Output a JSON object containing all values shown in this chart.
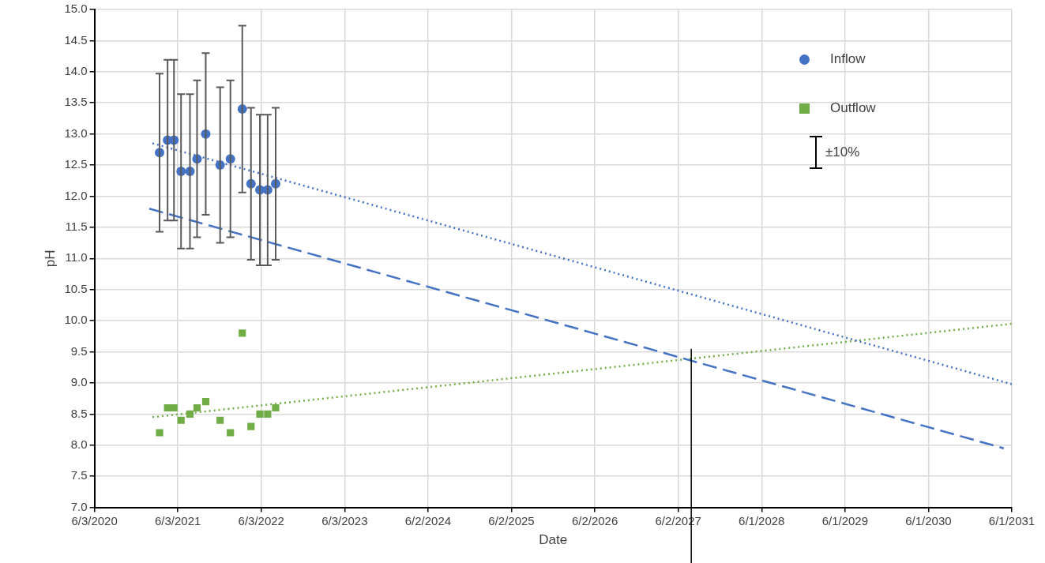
{
  "chart_data": {
    "type": "scatter",
    "xlabel": "Date",
    "ylabel": "pH",
    "annotations": [
      "±10%"
    ],
    "xlim": [
      "2020-06-03",
      "2031-06-01"
    ],
    "xticks": [
      {
        "value": "2020-06-03",
        "label": "6/3/2020"
      },
      {
        "value": "2021-06-03",
        "label": "6/3/2021"
      },
      {
        "value": "2022-06-03",
        "label": "6/3/2022"
      },
      {
        "value": "2023-06-03",
        "label": "6/3/2023"
      },
      {
        "value": "2024-06-02",
        "label": "6/2/2024"
      },
      {
        "value": "2025-06-02",
        "label": "6/2/2025"
      },
      {
        "value": "2026-06-02",
        "label": "6/2/2026"
      },
      {
        "value": "2027-06-02",
        "label": "6/2/2027"
      },
      {
        "value": "2028-06-01",
        "label": "6/1/2028"
      },
      {
        "value": "2029-06-01",
        "label": "6/1/2029"
      },
      {
        "value": "2030-06-01",
        "label": "6/1/2030"
      },
      {
        "value": "2031-06-01",
        "label": "6/1/2031"
      }
    ],
    "ylim": [
      7,
      15
    ],
    "yticks": [
      {
        "value": 7,
        "label": "7.0"
      },
      7.5,
      {
        "value": 8,
        "label": "8.0"
      },
      8.5,
      {
        "value": 9,
        "label": "9.0"
      },
      9.5,
      {
        "value": 10,
        "label": "10.0"
      },
      10.5,
      {
        "value": 11,
        "label": "11.0"
      },
      11.5,
      {
        "value": 12,
        "label": "12.0"
      },
      12.5,
      {
        "value": 13,
        "label": "13.0"
      },
      13.5,
      {
        "value": 14,
        "label": "14.0"
      },
      14.5,
      {
        "value": 15,
        "label": "15.0"
      }
    ],
    "grid": true,
    "legend": "top right",
    "x": [
      "2021-03-15",
      "2021-04-19",
      "2021-05-17",
      "2021-06-17",
      "2021-07-26",
      "2021-08-26",
      "2021-10-03",
      "2021-12-05",
      "2022-01-19",
      "2022-03-12",
      "2022-04-19",
      "2022-05-28",
      "2022-07-01",
      "2022-08-05"
    ],
    "series": [
      {
        "name": "Inflow",
        "marker": "circle",
        "color": "#4472c4",
        "values": [
          12.7,
          12.9,
          12.9,
          12.4,
          12.4,
          12.6,
          13.0,
          12.5,
          12.6,
          13.4,
          12.2,
          12.1,
          12.1,
          12.2
        ],
        "errors": [
          1.27,
          1.29,
          1.29,
          1.24,
          1.24,
          1.26,
          1.3,
          1.25,
          1.26,
          1.34,
          1.22,
          1.21,
          1.21,
          1.22
        ]
      },
      {
        "name": "Outflow",
        "marker": "square",
        "color": "#70ad47",
        "values": [
          8.2,
          8.6,
          8.6,
          8.4,
          8.5,
          8.6,
          8.7,
          8.4,
          8.2,
          9.8,
          8.3,
          8.5,
          8.5,
          8.6
        ]
      },
      {
        "type": "line",
        "line_style": "dotted",
        "color": "#4472c4",
        "x": [
          "2021-02-12",
          "2031-06-01"
        ],
        "values": [
          12.85,
          8.98
        ]
      },
      {
        "type": "line",
        "line_style": "dashed",
        "color": "#4472c4",
        "x": [
          "2021-01-29",
          "2031-04-27"
        ],
        "values": [
          11.8,
          7.95
        ]
      },
      {
        "type": "line",
        "line_style": "dotted",
        "color": "#70ad47",
        "x": [
          "2021-02-12",
          "2031-06-01"
        ],
        "values": [
          8.45,
          9.95
        ]
      }
    ],
    "ref_lines": [
      {
        "axis": "x",
        "value": "2027-07-29",
        "color": "#000000"
      }
    ]
  }
}
